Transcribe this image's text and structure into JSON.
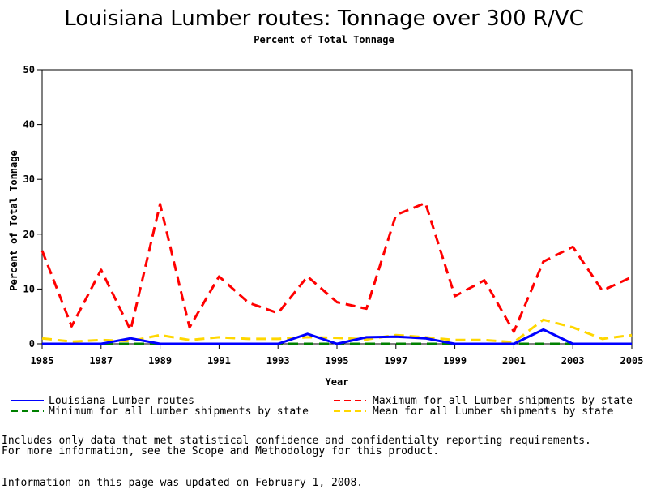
{
  "chart_data": {
    "type": "line",
    "title": "Louisiana Lumber routes: Tonnage over 300 R/VC",
    "subtitle": "Percent of Total Tonnage",
    "xlabel": "Year",
    "ylabel": "Percent of Total Tonnage",
    "xlim": [
      1985,
      2005
    ],
    "ylim": [
      0,
      50
    ],
    "x_ticks": [
      "1985",
      "1987",
      "1989",
      "1991",
      "1993",
      "1995",
      "1997",
      "1999",
      "2001",
      "2003",
      "2005"
    ],
    "y_ticks": [
      "0",
      "10",
      "20",
      "30",
      "40",
      "50"
    ],
    "x": [
      1985,
      1986,
      1987,
      1988,
      1989,
      1990,
      1991,
      1992,
      1993,
      1994,
      1995,
      1996,
      1997,
      1998,
      1999,
      2000,
      2001,
      2002,
      2003,
      2004,
      2005
    ],
    "series": [
      {
        "name": "Louisiana Lumber routes",
        "color": "#0000ff",
        "dash": "solid",
        "values": [
          0,
          0,
          0,
          1.0,
          0,
          0,
          0,
          0,
          0,
          1.8,
          0,
          1.2,
          1.3,
          1.0,
          0,
          0,
          0,
          2.6,
          0,
          0,
          0
        ]
      },
      {
        "name": "Maximum for all Lumber shipments by state",
        "color": "#ff0000",
        "dash": "dashed",
        "values": [
          17,
          3.2,
          13.5,
          2.5,
          25.5,
          3,
          12.3,
          7.5,
          5.6,
          12.3,
          7.6,
          6.4,
          23.5,
          25.7,
          8.7,
          11.6,
          2.2,
          15,
          17.7,
          9.7,
          12.2
        ]
      },
      {
        "name": "Minimum for all Lumber shipments by state",
        "color": "#008000",
        "dash": "dashed",
        "values": [
          0,
          0,
          0,
          0,
          0,
          0,
          0,
          0,
          0,
          0,
          0,
          0,
          0,
          0,
          0,
          0,
          0,
          0,
          0,
          0,
          0
        ]
      },
      {
        "name": "Mean for all Lumber shipments by state",
        "color": "#ffd700",
        "dash": "dashed",
        "values": [
          1.0,
          0.4,
          0.7,
          0.5,
          1.6,
          0.7,
          1.2,
          0.9,
          0.9,
          1.2,
          1.1,
          0.8,
          1.6,
          1.2,
          0.7,
          0.7,
          0.3,
          4.4,
          3.0,
          0.9,
          1.6
        ]
      }
    ],
    "grid": false,
    "legend_position": "bottom"
  },
  "notes": {
    "line1": "Includes only data that met statistical confidence and confidentialty reporting requirements.",
    "line2": "For more information, see the Scope and Methodology for this product.",
    "updated": "Information on this page was updated on February 1, 2008."
  }
}
